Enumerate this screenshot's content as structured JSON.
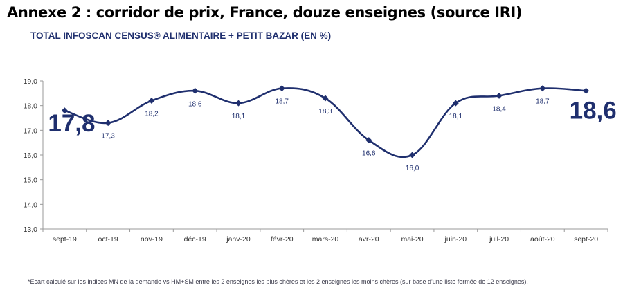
{
  "header": {
    "title": "Annexe 2 : corridor de prix, France, douze enseignes (source IRI)",
    "subtitle": "TOTAL INFOSCAN CENSUS® ALIMENTAIRE + PETIT BAZAR (EN %)"
  },
  "footnote": "*Ecart calculé sur les indices MN de la demande vs HM+SM entre les 2 enseignes les plus chères et les 2 enseignes les moins chères (sur base d'une liste fermée de 12 enseignes).",
  "chart_data": {
    "type": "line",
    "title": "TOTAL INFOSCAN CENSUS® ALIMENTAIRE + PETIT BAZAR (EN %)",
    "categories": [
      "sept-19",
      "oct-19",
      "nov-19",
      "déc-19",
      "janv-20",
      "févr-20",
      "mars-20",
      "avr-20",
      "mai-20",
      "juin-20",
      "juil-20",
      "août-20",
      "sept-20"
    ],
    "values": [
      17.8,
      17.3,
      18.2,
      18.6,
      18.1,
      18.7,
      18.3,
      16.6,
      16.0,
      18.1,
      18.4,
      18.7,
      18.6
    ],
    "value_labels": [
      "17,8",
      "17,3",
      "18,2",
      "18,6",
      "18,1",
      "18,7",
      "18,3",
      "16,6",
      "16,0",
      "18,1",
      "18,4",
      "18,7",
      "18,6"
    ],
    "y_ticks": [
      "13,0",
      "14,0",
      "15,0",
      "16,0",
      "17,0",
      "18,0",
      "19,0"
    ],
    "ylim": [
      13,
      19
    ],
    "xlabel": "",
    "ylabel": "",
    "grid": false,
    "line_color": "#1f2f6e"
  }
}
